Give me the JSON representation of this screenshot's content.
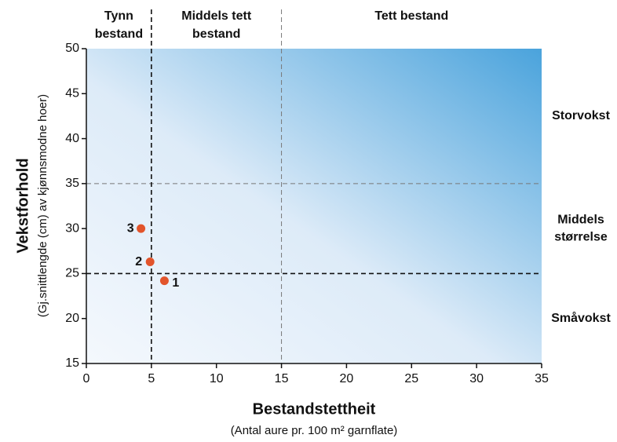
{
  "chart_data": {
    "type": "scatter",
    "x_title": "Bestandstettheit",
    "x_subtitle": "(Antal aure pr. 100 m² garnflate)",
    "y_title": "Vekstforhold",
    "y_subtitle": "(Gj.snittlengde (cm) av kjønnsmodne hoer)",
    "series": [
      {
        "color": "#e2542b",
        "x": [
          6.0,
          4.9,
          4.2
        ],
        "values": [
          24.2,
          26.3,
          30.0
        ],
        "labels": [
          "1",
          "2",
          "3"
        ]
      }
    ],
    "xlim": [
      0,
      35
    ],
    "xticks": [
      0,
      5,
      10,
      15,
      20,
      25,
      30,
      35
    ],
    "ylim": [
      15,
      50
    ],
    "yticks": [
      15,
      20,
      25,
      30,
      35,
      40,
      45,
      50
    ],
    "x_dividers": [
      5,
      15
    ],
    "y_dividers": [
      25,
      35
    ],
    "top_zones": [
      [
        "Tynn",
        "bestand"
      ],
      [
        "Middels tett",
        "bestand"
      ],
      [
        "Tett bestand"
      ]
    ],
    "right_zones": [
      [
        "Storvokst"
      ],
      [
        "Middels",
        "størrelse"
      ],
      [
        "Småvokst"
      ]
    ]
  }
}
